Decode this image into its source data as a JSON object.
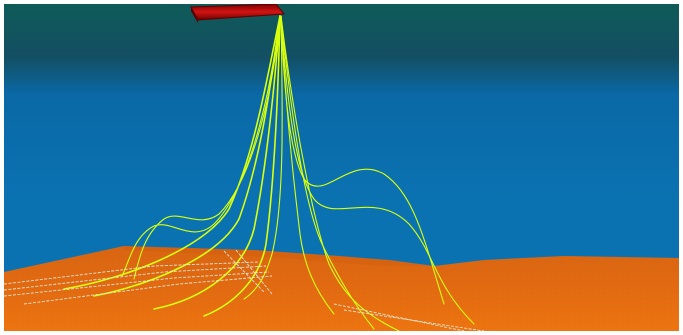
{
  "scene": {
    "colors": {
      "surface_band": "#0f5b58",
      "water": "#0b6fae",
      "seabed": "#e46c12",
      "seabed_shadow": "#c9580a",
      "vessel": "#d31414",
      "vessel_edge": "#5a0000",
      "riser_yellow": "#d8ff10",
      "riser_white": "#f2f2e8"
    },
    "icons": {
      "vessel": "floating-platform-hull",
      "risers": "flexible-riser-lines",
      "seabed": "seabed-terrain",
      "water": "water-column"
    }
  }
}
